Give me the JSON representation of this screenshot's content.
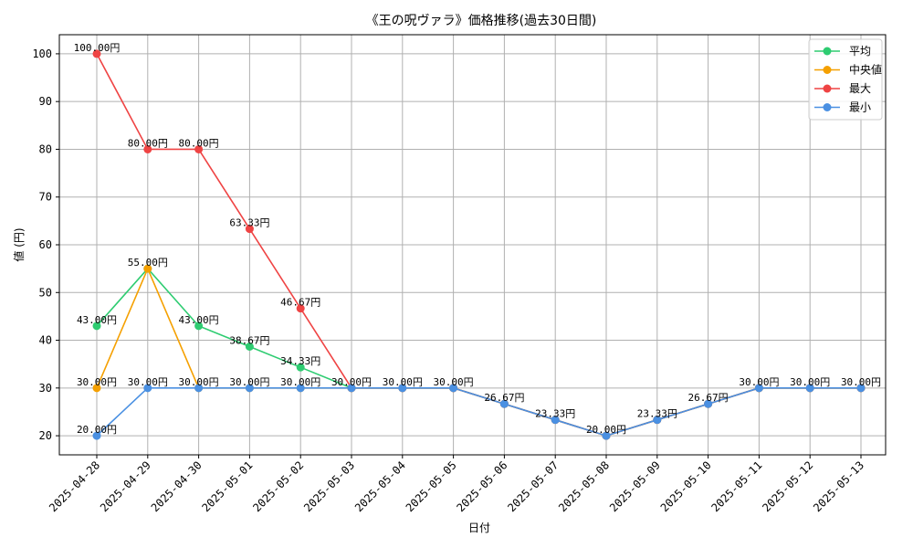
{
  "chart_data": {
    "type": "line",
    "title": "《王の呪ヴァラ》価格推移(過去30日間)",
    "xlabel": "日付",
    "ylabel": "値 (円)",
    "ylim": [
      16,
      104
    ],
    "yticks": [
      20,
      30,
      40,
      50,
      60,
      70,
      80,
      90,
      100
    ],
    "grid": true,
    "legend_position": "top-right",
    "value_suffix": "円",
    "categories": [
      "2025-04-28",
      "2025-04-29",
      "2025-04-30",
      "2025-05-01",
      "2025-05-02",
      "2025-05-03",
      "2025-05-04",
      "2025-05-05",
      "2025-05-06",
      "2025-05-07",
      "2025-05-08",
      "2025-05-09",
      "2025-05-10",
      "2025-05-11",
      "2025-05-12",
      "2025-05-13"
    ],
    "series": [
      {
        "name": "平均",
        "color": "#2ecc71",
        "values": [
          43.0,
          55.0,
          43.0,
          38.67,
          34.33,
          30.0,
          30.0,
          30.0,
          26.67,
          23.33,
          20.0,
          23.33,
          26.67,
          30.0,
          30.0,
          30.0
        ]
      },
      {
        "name": "中央値",
        "color": "#f5a000",
        "values": [
          30.0,
          55.0,
          30.0,
          30.0,
          30.0,
          30.0,
          30.0,
          30.0,
          26.67,
          23.33,
          20.0,
          23.33,
          26.67,
          30.0,
          30.0,
          30.0
        ]
      },
      {
        "name": "最大",
        "color": "#ef4444",
        "values": [
          100.0,
          80.0,
          80.0,
          63.33,
          46.67,
          30.0,
          30.0,
          30.0,
          26.67,
          23.33,
          20.0,
          23.33,
          26.67,
          30.0,
          30.0,
          30.0
        ]
      },
      {
        "name": "最小",
        "color": "#4a90e2",
        "values": [
          20.0,
          30.0,
          30.0,
          30.0,
          30.0,
          30.0,
          30.0,
          30.0,
          26.67,
          23.33,
          20.0,
          23.33,
          26.67,
          30.0,
          30.0,
          30.0
        ]
      }
    ]
  }
}
